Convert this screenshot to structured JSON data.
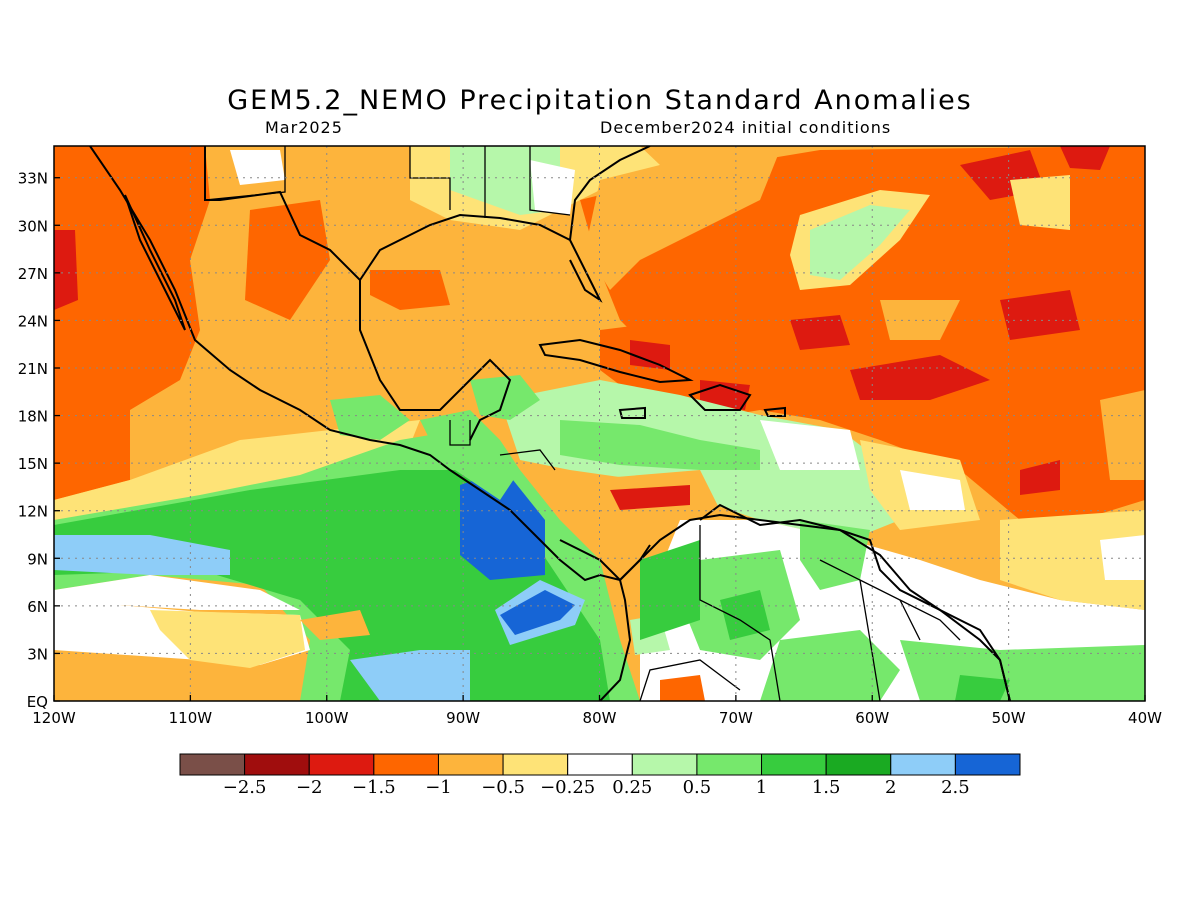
{
  "header": {
    "title": "GEM5.2_NEMO Precipitation Standard Anomalies",
    "month": "Mar2025",
    "init": "December2024 initial conditions"
  },
  "map": {
    "lon_range": [
      -120,
      -40
    ],
    "lat_range": [
      0,
      35
    ],
    "x_ticks": [
      {
        "v": -120,
        "label": "120W"
      },
      {
        "v": -110,
        "label": "110W"
      },
      {
        "v": -100,
        "label": "100W"
      },
      {
        "v": -90,
        "label": "90W"
      },
      {
        "v": -80,
        "label": "80W"
      },
      {
        "v": -70,
        "label": "70W"
      },
      {
        "v": -60,
        "label": "60W"
      },
      {
        "v": -50,
        "label": "50W"
      },
      {
        "v": -40,
        "label": "40W"
      }
    ],
    "y_ticks": [
      {
        "v": 0,
        "label": "EQ"
      },
      {
        "v": 3,
        "label": "3N"
      },
      {
        "v": 6,
        "label": "6N"
      },
      {
        "v": 9,
        "label": "9N"
      },
      {
        "v": 12,
        "label": "12N"
      },
      {
        "v": 15,
        "label": "15N"
      },
      {
        "v": 18,
        "label": "18N"
      },
      {
        "v": 21,
        "label": "21N"
      },
      {
        "v": 24,
        "label": "24N"
      },
      {
        "v": 27,
        "label": "27N"
      },
      {
        "v": 30,
        "label": "30N"
      },
      {
        "v": 33,
        "label": "33N"
      }
    ],
    "grid": true
  },
  "legend": {
    "colors": [
      "#7a4f48",
      "#a00d0d",
      "#dd1a10",
      "#fe6600",
      "#fdb43c",
      "#fee377",
      "#ffffff",
      "#b6f7aa",
      "#76e86c",
      "#37cc3e",
      "#1aaa22",
      "#8ecdf8",
      "#1665d6"
    ],
    "labels": [
      "−2.5",
      "−2",
      "−1.5",
      "−1",
      "−0.5",
      "−0.25",
      "0.25",
      "0.5",
      "1",
      "1.5",
      "2",
      "2.5"
    ]
  }
}
